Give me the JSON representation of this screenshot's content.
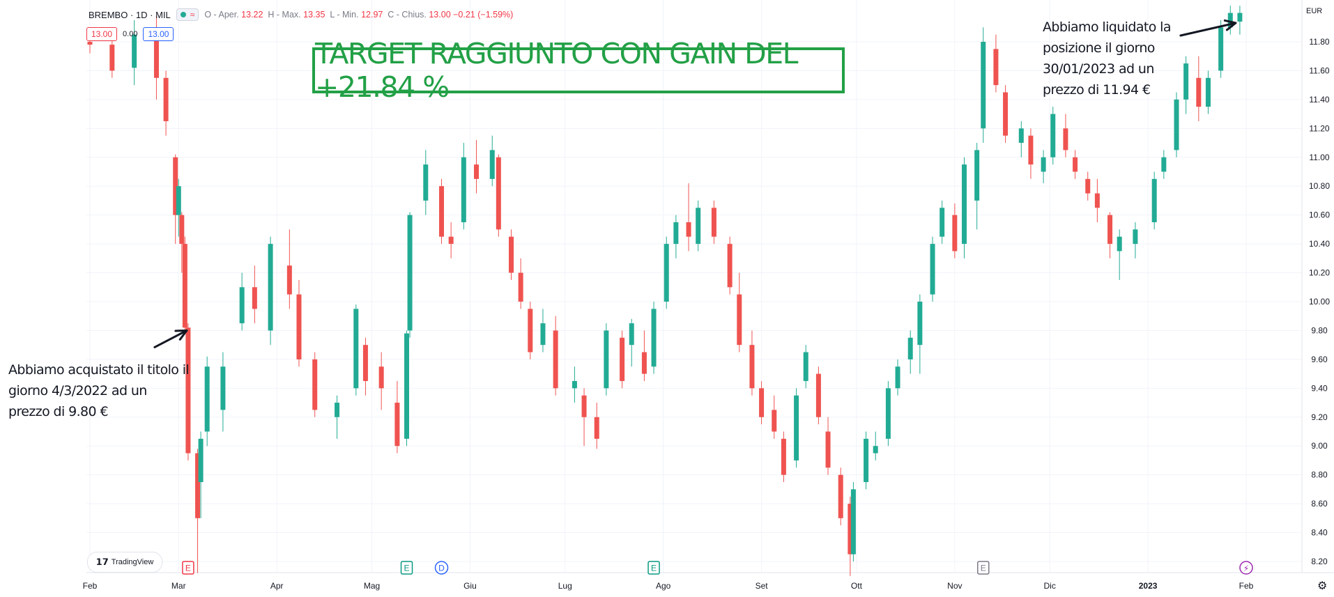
{
  "header": {
    "symbol": "BREMBO · 1D · MIL",
    "wave_icon": "≈",
    "ohlc_text_o": "O - Aper.",
    "open": "13.22",
    "ohlc_text_h": "H - Max.",
    "high": "13.35",
    "ohlc_text_l": "L - Min.",
    "low": "12.97",
    "ohlc_text_c": "C - Chius.",
    "close": "13.00",
    "change": "−0.21 (−1.59%)"
  },
  "price_boxes": {
    "bid": "13.00",
    "spread": "0.00",
    "ask": "13.00"
  },
  "target_banner": "TARGET RAGGIUNTO CON GAIN DEL +21.84 %",
  "notes": {
    "buy": "Abbiamo acquistato il titolo il giorno 4/3/2022 ad un prezzo di 9.80 €",
    "sell": "Abbiamo liquidato la posizione il giorno 30/01/2023 ad un prezzo di 11.94 €"
  },
  "currency": "EUR",
  "brand": "TradingView",
  "colors": {
    "up": "#22ab94",
    "down": "#ef5350",
    "grid": "#f0f3fa",
    "accent_green": "#22a046"
  },
  "event_markers": [
    {
      "label": "E",
      "color": "#f23645",
      "date": "2022-03-04"
    },
    {
      "label": "E",
      "color": "#089981",
      "date": "2022-05-12"
    },
    {
      "label": "D",
      "color": "#2962ff",
      "date": "2022-05-23"
    },
    {
      "label": "E",
      "color": "#089981",
      "date": "2022-07-29"
    },
    {
      "label": "E",
      "color": "#787b86",
      "date": "2022-11-10"
    },
    {
      "label": "⚡",
      "color": "#9c27b0",
      "date": "2023-02-01"
    }
  ],
  "chart_data": {
    "type": "candlestick",
    "title": "",
    "xlabel": "",
    "ylabel": "",
    "ylim": [
      8.1,
      12.0
    ],
    "y_ticks": [
      8.2,
      8.4,
      8.6,
      8.8,
      9.0,
      9.2,
      9.4,
      9.6,
      9.8,
      10.0,
      10.2,
      10.4,
      10.6,
      10.8,
      11.0,
      11.2,
      11.4,
      11.6,
      11.8
    ],
    "x_ticks": [
      "Feb",
      "Mar",
      "Apr",
      "Mag",
      "Giu",
      "Lug",
      "Ago",
      "Set",
      "Ott",
      "Nov",
      "Dic",
      "2023",
      "Feb"
    ],
    "grid": true,
    "series": [
      {
        "values": [
          {
            "x": "2022-02-01",
            "y": [
              11.8,
              11.88,
              11.72,
              11.78
            ]
          },
          {
            "x": "2022-02-08",
            "y": [
              11.78,
              11.9,
              11.55,
              11.6
            ]
          },
          {
            "x": "2022-02-15",
            "y": [
              11.62,
              11.95,
              11.5,
              11.85
            ]
          },
          {
            "x": "2022-02-22",
            "y": [
              11.85,
              11.98,
              11.4,
              11.55
            ]
          },
          {
            "x": "2022-02-25",
            "y": [
              11.55,
              11.6,
              11.15,
              11.25
            ]
          },
          {
            "x": "2022-02-28",
            "y": [
              11.0,
              11.02,
              10.4,
              10.6
            ]
          },
          {
            "x": "2022-03-01",
            "y": [
              10.6,
              10.85,
              10.45,
              10.8
            ]
          },
          {
            "x": "2022-03-02",
            "y": [
              10.6,
              10.62,
              10.2,
              10.4
            ]
          },
          {
            "x": "2022-03-03",
            "y": [
              10.4,
              10.45,
              9.78,
              9.82
            ]
          },
          {
            "x": "2022-03-04",
            "y": [
              9.82,
              9.85,
              8.9,
              8.95
            ]
          },
          {
            "x": "2022-03-07",
            "y": [
              8.95,
              8.98,
              8.12,
              8.5
            ]
          },
          {
            "x": "2022-03-08",
            "y": [
              8.75,
              9.1,
              8.5,
              9.05
            ]
          },
          {
            "x": "2022-03-10",
            "y": [
              9.1,
              9.62,
              9.0,
              9.55
            ]
          },
          {
            "x": "2022-03-15",
            "y": [
              9.25,
              9.65,
              9.1,
              9.55
            ]
          },
          {
            "x": "2022-03-21",
            "y": [
              9.85,
              10.2,
              9.8,
              10.1
            ]
          },
          {
            "x": "2022-03-25",
            "y": [
              10.1,
              10.25,
              9.85,
              9.95
            ]
          },
          {
            "x": "2022-03-30",
            "y": [
              9.8,
              10.45,
              9.7,
              10.4
            ]
          },
          {
            "x": "2022-04-05",
            "y": [
              10.25,
              10.5,
              9.95,
              10.05
            ]
          },
          {
            "x": "2022-04-08",
            "y": [
              10.05,
              10.15,
              9.55,
              9.6
            ]
          },
          {
            "x": "2022-04-13",
            "y": [
              9.6,
              9.65,
              9.2,
              9.25
            ]
          },
          {
            "x": "2022-04-20",
            "y": [
              9.2,
              9.35,
              9.05,
              9.3
            ]
          },
          {
            "x": "2022-04-26",
            "y": [
              9.4,
              9.98,
              9.35,
              9.95
            ]
          },
          {
            "x": "2022-04-29",
            "y": [
              9.7,
              9.75,
              9.35,
              9.45
            ]
          },
          {
            "x": "2022-05-04",
            "y": [
              9.55,
              9.65,
              9.25,
              9.4
            ]
          },
          {
            "x": "2022-05-09",
            "y": [
              9.3,
              9.45,
              8.95,
              9.0
            ]
          },
          {
            "x": "2022-05-12",
            "y": [
              9.05,
              9.8,
              9.0,
              9.78
            ]
          },
          {
            "x": "2022-05-13",
            "y": [
              9.8,
              10.62,
              9.75,
              10.6
            ]
          },
          {
            "x": "2022-05-18",
            "y": [
              10.7,
              11.05,
              10.6,
              10.95
            ]
          },
          {
            "x": "2022-05-23",
            "y": [
              10.8,
              10.85,
              10.4,
              10.45
            ]
          },
          {
            "x": "2022-05-26",
            "y": [
              10.45,
              10.55,
              10.3,
              10.4
            ]
          },
          {
            "x": "2022-05-30",
            "y": [
              10.55,
              11.1,
              10.5,
              11.0
            ]
          },
          {
            "x": "2022-06-03",
            "y": [
              10.95,
              11.12,
              10.75,
              10.85
            ]
          },
          {
            "x": "2022-06-08",
            "y": [
              10.85,
              11.15,
              10.8,
              11.05
            ]
          },
          {
            "x": "2022-06-10",
            "y": [
              11.0,
              11.02,
              10.45,
              10.5
            ]
          },
          {
            "x": "2022-06-14",
            "y": [
              10.45,
              10.5,
              10.15,
              10.2
            ]
          },
          {
            "x": "2022-06-17",
            "y": [
              10.2,
              10.3,
              9.95,
              10.0
            ]
          },
          {
            "x": "2022-06-20",
            "y": [
              9.95,
              10.0,
              9.6,
              9.65
            ]
          },
          {
            "x": "2022-06-24",
            "y": [
              9.7,
              9.95,
              9.65,
              9.85
            ]
          },
          {
            "x": "2022-06-28",
            "y": [
              9.8,
              9.9,
              9.35,
              9.4
            ]
          },
          {
            "x": "2022-07-04",
            "y": [
              9.4,
              9.55,
              9.3,
              9.45
            ]
          },
          {
            "x": "2022-07-07",
            "y": [
              9.35,
              9.4,
              9.0,
              9.2
            ]
          },
          {
            "x": "2022-07-11",
            "y": [
              9.2,
              9.3,
              8.98,
              9.05
            ]
          },
          {
            "x": "2022-07-14",
            "y": [
              9.4,
              9.85,
              9.35,
              9.8
            ]
          },
          {
            "x": "2022-07-19",
            "y": [
              9.75,
              9.8,
              9.4,
              9.45
            ]
          },
          {
            "x": "2022-07-22",
            "y": [
              9.7,
              9.88,
              9.55,
              9.85
            ]
          },
          {
            "x": "2022-07-26",
            "y": [
              9.65,
              9.8,
              9.45,
              9.5
            ]
          },
          {
            "x": "2022-07-29",
            "y": [
              9.55,
              10.0,
              9.5,
              9.95
            ]
          },
          {
            "x": "2022-08-02",
            "y": [
              10.0,
              10.45,
              9.95,
              10.4
            ]
          },
          {
            "x": "2022-08-05",
            "y": [
              10.4,
              10.6,
              10.3,
              10.55
            ]
          },
          {
            "x": "2022-08-09",
            "y": [
              10.55,
              10.82,
              10.35,
              10.45
            ]
          },
          {
            "x": "2022-08-12",
            "y": [
              10.4,
              10.7,
              10.35,
              10.65
            ]
          },
          {
            "x": "2022-08-17",
            "y": [
              10.65,
              10.7,
              10.4,
              10.45
            ]
          },
          {
            "x": "2022-08-22",
            "y": [
              10.4,
              10.45,
              10.05,
              10.1
            ]
          },
          {
            "x": "2022-08-25",
            "y": [
              10.05,
              10.2,
              9.65,
              9.7
            ]
          },
          {
            "x": "2022-08-29",
            "y": [
              9.7,
              9.8,
              9.35,
              9.4
            ]
          },
          {
            "x": "2022-09-01",
            "y": [
              9.4,
              9.45,
              9.15,
              9.2
            ]
          },
          {
            "x": "2022-09-05",
            "y": [
              9.25,
              9.35,
              9.05,
              9.1
            ]
          },
          {
            "x": "2022-09-08",
            "y": [
              9.05,
              9.1,
              8.75,
              8.8
            ]
          },
          {
            "x": "2022-09-12",
            "y": [
              8.9,
              9.4,
              8.85,
              9.35
            ]
          },
          {
            "x": "2022-09-15",
            "y": [
              9.45,
              9.7,
              9.4,
              9.65
            ]
          },
          {
            "x": "2022-09-19",
            "y": [
              9.5,
              9.55,
              9.15,
              9.2
            ]
          },
          {
            "x": "2022-09-22",
            "y": [
              9.1,
              9.2,
              8.8,
              8.85
            ]
          },
          {
            "x": "2022-09-26",
            "y": [
              8.8,
              8.85,
              8.45,
              8.5
            ]
          },
          {
            "x": "2022-09-29",
            "y": [
              8.6,
              8.65,
              8.1,
              8.25
            ]
          },
          {
            "x": "2022-09-30",
            "y": [
              8.25,
              8.75,
              8.2,
              8.7
            ]
          },
          {
            "x": "2022-10-04",
            "y": [
              8.75,
              9.1,
              8.7,
              9.05
            ]
          },
          {
            "x": "2022-10-07",
            "y": [
              8.95,
              9.1,
              8.9,
              9.0
            ]
          },
          {
            "x": "2022-10-11",
            "y": [
              9.05,
              9.45,
              9.0,
              9.4
            ]
          },
          {
            "x": "2022-10-14",
            "y": [
              9.4,
              9.6,
              9.35,
              9.55
            ]
          },
          {
            "x": "2022-10-18",
            "y": [
              9.6,
              9.8,
              9.5,
              9.75
            ]
          },
          {
            "x": "2022-10-21",
            "y": [
              9.7,
              10.05,
              9.5,
              10.0
            ]
          },
          {
            "x": "2022-10-25",
            "y": [
              10.05,
              10.45,
              10.0,
              10.4
            ]
          },
          {
            "x": "2022-10-28",
            "y": [
              10.45,
              10.7,
              10.4,
              10.65
            ]
          },
          {
            "x": "2022-11-01",
            "y": [
              10.6,
              10.68,
              10.3,
              10.35
            ]
          },
          {
            "x": "2022-11-04",
            "y": [
              10.4,
              11.0,
              10.3,
              10.95
            ]
          },
          {
            "x": "2022-11-08",
            "y": [
              10.7,
              11.1,
              10.5,
              11.05
            ]
          },
          {
            "x": "2022-11-10",
            "y": [
              11.2,
              11.9,
              11.1,
              11.8
            ]
          },
          {
            "x": "2022-11-14",
            "y": [
              11.75,
              11.85,
              11.45,
              11.5
            ]
          },
          {
            "x": "2022-11-17",
            "y": [
              11.45,
              11.5,
              11.1,
              11.15
            ]
          },
          {
            "x": "2022-11-22",
            "y": [
              11.1,
              11.25,
              11.0,
              11.2
            ]
          },
          {
            "x": "2022-11-25",
            "y": [
              11.15,
              11.2,
              10.85,
              10.95
            ]
          },
          {
            "x": "2022-11-29",
            "y": [
              10.9,
              11.05,
              10.82,
              11.0
            ]
          },
          {
            "x": "2022-12-02",
            "y": [
              11.0,
              11.35,
              10.95,
              11.3
            ]
          },
          {
            "x": "2022-12-06",
            "y": [
              11.2,
              11.3,
              11.0,
              11.05
            ]
          },
          {
            "x": "2022-12-09",
            "y": [
              11.0,
              11.05,
              10.85,
              10.9
            ]
          },
          {
            "x": "2022-12-13",
            "y": [
              10.85,
              10.9,
              10.7,
              10.75
            ]
          },
          {
            "x": "2022-12-16",
            "y": [
              10.75,
              10.85,
              10.55,
              10.65
            ]
          },
          {
            "x": "2022-12-20",
            "y": [
              10.6,
              10.62,
              10.3,
              10.4
            ]
          },
          {
            "x": "2022-12-23",
            "y": [
              10.35,
              10.5,
              10.15,
              10.45
            ]
          },
          {
            "x": "2022-12-28",
            "y": [
              10.4,
              10.55,
              10.3,
              10.5
            ]
          },
          {
            "x": "2023-01-03",
            "y": [
              10.55,
              10.9,
              10.5,
              10.85
            ]
          },
          {
            "x": "2023-01-06",
            "y": [
              10.9,
              11.05,
              10.85,
              11.0
            ]
          },
          {
            "x": "2023-01-10",
            "y": [
              11.05,
              11.45,
              11.0,
              11.4
            ]
          },
          {
            "x": "2023-01-13",
            "y": [
              11.4,
              11.7,
              11.3,
              11.65
            ]
          },
          {
            "x": "2023-01-17",
            "y": [
              11.55,
              11.7,
              11.25,
              11.35
            ]
          },
          {
            "x": "2023-01-20",
            "y": [
              11.35,
              11.6,
              11.3,
              11.55
            ]
          },
          {
            "x": "2023-01-24",
            "y": [
              11.6,
              11.95,
              11.55,
              11.9
            ]
          },
          {
            "x": "2023-01-27",
            "y": [
              11.9,
              12.05,
              11.85,
              12.0
            ]
          },
          {
            "x": "2023-01-30",
            "y": [
              11.94,
              12.05,
              11.85,
              12.0
            ]
          }
        ]
      }
    ],
    "annotations": [
      "TARGET RAGGIUNTO CON GAIN DEL +21.84 %",
      "Buy arrow at 2022-03-04 9.80",
      "Sell arrow at 2023-01-30 11.94"
    ]
  }
}
